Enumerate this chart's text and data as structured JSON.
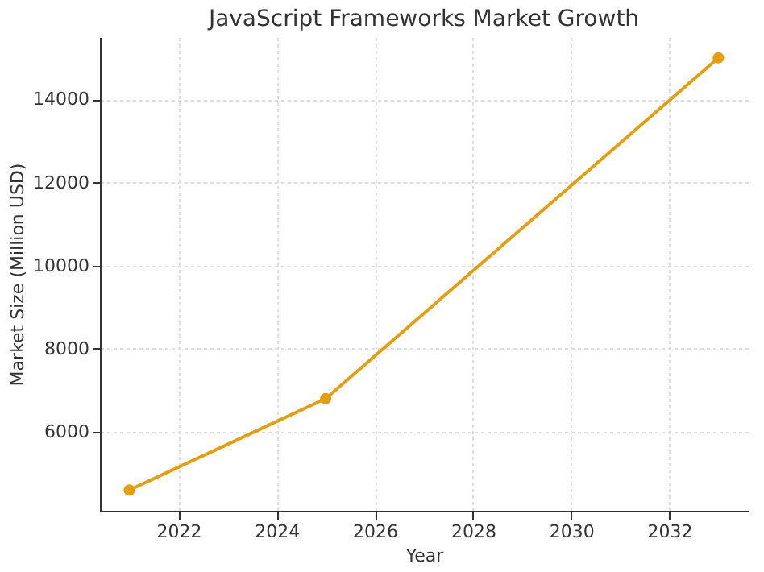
{
  "chart_data": {
    "type": "line",
    "title": "JavaScript Frameworks Market Growth",
    "xlabel": "Year",
    "ylabel": "Market Size (Million USD)",
    "x": [
      2021,
      2025,
      2033
    ],
    "series": [
      {
        "color": "#e39f0f",
        "values": [
          4600,
          6800,
          15000
        ]
      }
    ],
    "xlim": [
      2020.4,
      2033.6
    ],
    "xticks": [
      2022,
      2024,
      2026,
      2028,
      2030,
      2032
    ],
    "ylim": [
      4100,
      15500
    ],
    "yticks": [
      6000,
      8000,
      10000,
      12000,
      14000
    ],
    "grid": true,
    "marker": "circle",
    "line_style": "solid"
  }
}
